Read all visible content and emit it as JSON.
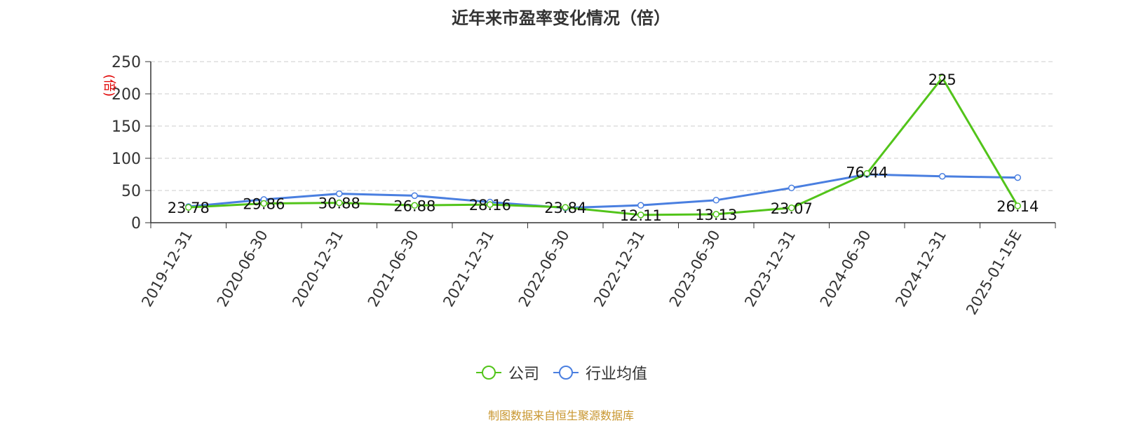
{
  "title": "近年来市盈率变化情况（倍）",
  "source_note": "制图数据来自恒生聚源数据库",
  "colors": {
    "company": "#52c41a",
    "industry": "#4a7fe0",
    "unit_label": "#e00000",
    "grid": "#cccccc",
    "axis": "#333333",
    "source": "#c8962f"
  },
  "chart_data": {
    "type": "line",
    "title": "近年来市盈率变化情况（倍）",
    "ylabel": "(倍)",
    "xlabel": "",
    "ylim": [
      0,
      250
    ],
    "yticks": [
      0,
      50,
      100,
      150,
      200,
      250
    ],
    "grid": true,
    "legend_position": "bottom-center",
    "categories": [
      "2019-12-31",
      "2020-06-30",
      "2020-12-31",
      "2021-06-30",
      "2021-12-31",
      "2022-06-30",
      "2022-12-31",
      "2023-06-30",
      "2023-12-31",
      "2024-06-30",
      "2024-12-31",
      "2025-01-15E"
    ],
    "series": [
      {
        "name": "公司",
        "color": "#52c41a",
        "values": [
          23.78,
          29.86,
          30.88,
          26.88,
          28.16,
          23.84,
          12.11,
          13.13,
          23.07,
          76.44,
          225,
          26.14
        ],
        "labels": [
          "23.78",
          "29.86",
          "30.88",
          "26.88",
          "28.16",
          "23.84",
          "12.11",
          "13.13",
          "23.07",
          "76.44",
          "225",
          "26.14"
        ]
      },
      {
        "name": "行业均值",
        "color": "#4a7fe0",
        "values": [
          25,
          36,
          45,
          42,
          32,
          23,
          27,
          35,
          54,
          75,
          72,
          70
        ]
      }
    ]
  }
}
